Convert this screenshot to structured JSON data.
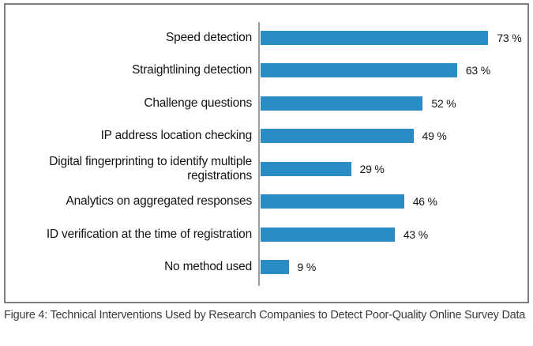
{
  "chart_data": {
    "type": "bar",
    "orientation": "horizontal",
    "title": "",
    "xlabel": "",
    "ylabel": "",
    "xlim": [
      0,
      85
    ],
    "grid": false,
    "legend": false,
    "axis_tick_labels_visible": false,
    "value_suffix": " %",
    "bar_color": "#2a8bc5",
    "axis_line_color": "#9e9e9e",
    "categories": [
      "Speed detection",
      "Straightlining detection",
      "Challenge questions",
      "IP address location checking",
      "Digital fingerprinting to identify multiple\nregistrations",
      "Analytics on aggregated responses",
      "ID verification at the time of registration",
      "No method used"
    ],
    "values": [
      73,
      63,
      52,
      49,
      29,
      46,
      43,
      9
    ],
    "value_labels": [
      "73 %",
      "63 %",
      "52 %",
      "49 %",
      "29 %",
      "46 %",
      "43 %",
      "9 %"
    ]
  },
  "caption": "Figure 4: Technical Interventions Used by Research Companies to Detect Poor-Quality Online Survey Data"
}
